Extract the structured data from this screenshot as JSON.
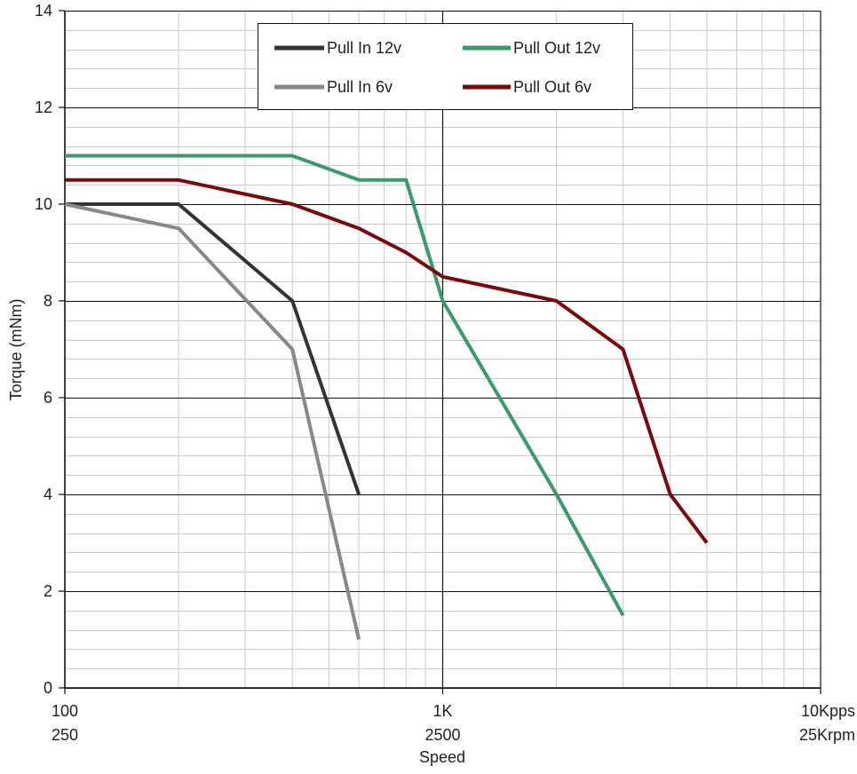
{
  "chart_data": {
    "type": "line",
    "title": "",
    "xlabel": "Speed",
    "ylabel": "Torque (mNm)",
    "x_scale": "log",
    "xlim": [
      100,
      10000
    ],
    "ylim": [
      0,
      14
    ],
    "grid": true,
    "legend_position": "top-center",
    "x_ticks": [
      {
        "value": 100,
        "line1": "100",
        "line2": "250"
      },
      {
        "value": 1000,
        "line1": "1K",
        "line2": "2500"
      },
      {
        "value": 10000,
        "line1": "10Kpps",
        "line2": "25Krpm"
      }
    ],
    "y_ticks": [
      0,
      2,
      4,
      6,
      8,
      10,
      12,
      14
    ],
    "series": [
      {
        "name": "Pull In 12v",
        "color": "#333333",
        "x": [
          100,
          200,
          400,
          600
        ],
        "y": [
          10,
          10,
          8,
          4
        ]
      },
      {
        "name": "Pull Out 12v",
        "color": "#3a9a6a",
        "x": [
          100,
          400,
          600,
          800,
          1000,
          2000,
          3000
        ],
        "y": [
          11,
          11,
          10.5,
          10.5,
          8,
          4,
          1.5
        ]
      },
      {
        "name": "Pull In 6v",
        "color": "#888888",
        "x": [
          100,
          200,
          400,
          600
        ],
        "y": [
          10,
          9.5,
          7,
          1
        ]
      },
      {
        "name": "Pull Out 6v",
        "color": "#7a0a0a",
        "x": [
          100,
          200,
          400,
          600,
          800,
          1000,
          2000,
          3000,
          4000,
          5000
        ],
        "y": [
          10.5,
          10.5,
          10,
          9.5,
          9,
          8.5,
          8,
          7,
          4,
          3
        ]
      }
    ]
  }
}
